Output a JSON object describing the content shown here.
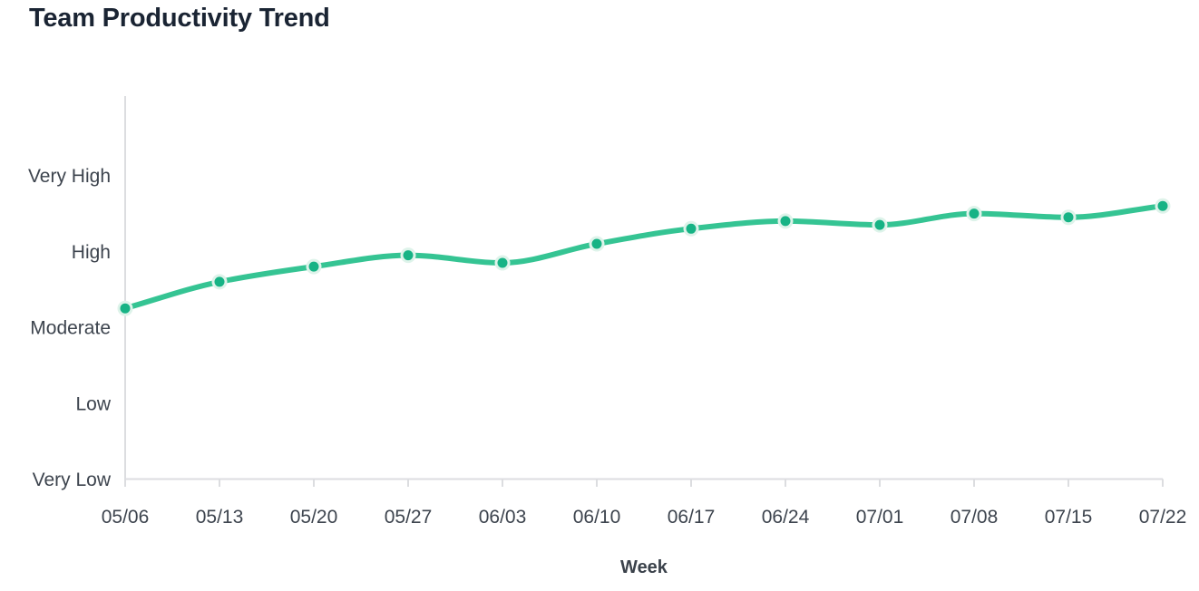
{
  "chart_data": {
    "type": "line",
    "title": "Team Productivity Trend",
    "xlabel": "Week",
    "ylabel": "",
    "x": [
      "05/06",
      "05/13",
      "05/20",
      "05/27",
      "06/03",
      "06/10",
      "06/17",
      "06/24",
      "07/01",
      "07/08",
      "07/15",
      "07/22"
    ],
    "y_tick_labels": [
      "Very Low",
      "Low",
      "Moderate",
      "High",
      "Very High"
    ],
    "y_tick_values": [
      0,
      1,
      2,
      3,
      4
    ],
    "ylim": [
      0,
      5
    ],
    "series": [
      {
        "name": "Productivity",
        "values": [
          2.25,
          2.6,
          2.8,
          2.95,
          2.85,
          3.1,
          3.3,
          3.4,
          3.35,
          3.5,
          3.45,
          3.6
        ]
      }
    ],
    "grid": false,
    "legend": false,
    "smooth": true,
    "colors": {
      "line": "#35c493",
      "dot": "#17b385",
      "dot_halo": "#def3ea",
      "axis": "#dcdde0",
      "tick_label": "#3d444e",
      "axis_title": "#3b424b",
      "title": "#1a2433"
    }
  }
}
